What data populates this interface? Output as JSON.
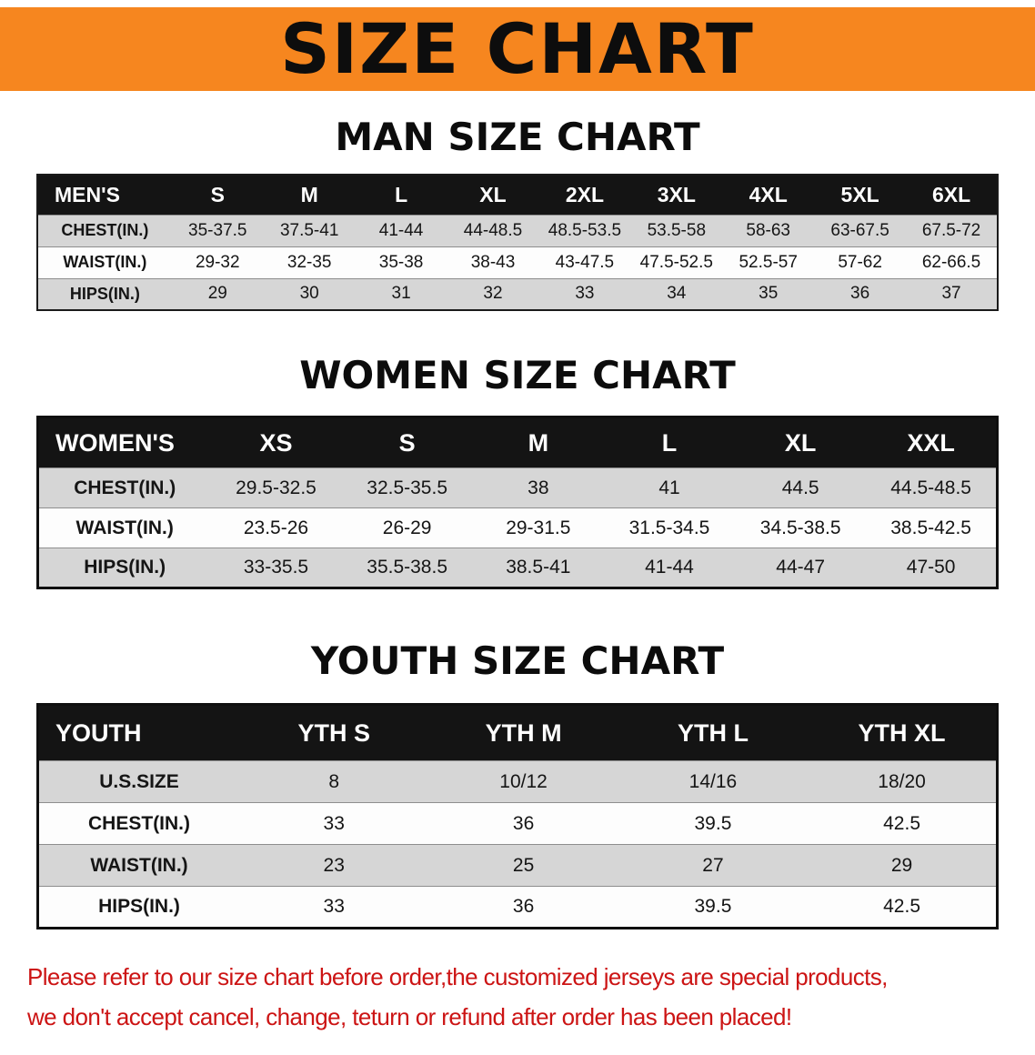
{
  "banner": {
    "title": "SIZE CHART"
  },
  "sections": [
    {
      "heading": "MAN SIZE CHART",
      "table": {
        "header": [
          "MEN'S",
          "S",
          "M",
          "L",
          "XL",
          "2XL",
          "3XL",
          "4XL",
          "5XL",
          "6XL"
        ],
        "rows": [
          [
            "CHEST(IN.)",
            "35-37.5",
            "37.5-41",
            "41-44",
            "44-48.5",
            "48.5-53.5",
            "53.5-58",
            "58-63",
            "63-67.5",
            "67.5-72"
          ],
          [
            "WAIST(IN.)",
            "29-32",
            "32-35",
            "35-38",
            "38-43",
            "43-47.5",
            "47.5-52.5",
            "52.5-57",
            "57-62",
            "62-66.5"
          ],
          [
            "HIPS(IN.)",
            "29",
            "30",
            "31",
            "32",
            "33",
            "34",
            "35",
            "36",
            "37"
          ]
        ]
      }
    },
    {
      "heading": "WOMEN SIZE CHART",
      "table": {
        "header": [
          "WOMEN'S",
          "XS",
          "S",
          "M",
          "L",
          "XL",
          "XXL"
        ],
        "rows": [
          [
            "CHEST(IN.)",
            "29.5-32.5",
            "32.5-35.5",
            "38",
            "41",
            "44.5",
            "44.5-48.5"
          ],
          [
            "WAIST(IN.)",
            "23.5-26",
            "26-29",
            "29-31.5",
            "31.5-34.5",
            "34.5-38.5",
            "38.5-42.5"
          ],
          [
            "HIPS(IN.)",
            "33-35.5",
            "35.5-38.5",
            "38.5-41",
            "41-44",
            "44-47",
            "47-50"
          ]
        ]
      }
    },
    {
      "heading": "YOUTH SIZE CHART",
      "table": {
        "header": [
          "YOUTH",
          "YTH S",
          "YTH M",
          "YTH L",
          "YTH XL"
        ],
        "rows": [
          [
            "U.S.SIZE",
            "8",
            "10/12",
            "14/16",
            "18/20"
          ],
          [
            "CHEST(IN.)",
            "33",
            "36",
            "39.5",
            "42.5"
          ],
          [
            "WAIST(IN.)",
            "23",
            "25",
            "27",
            "29"
          ],
          [
            "HIPS(IN.)",
            "33",
            "36",
            "39.5",
            "42.5"
          ]
        ]
      }
    }
  ],
  "notice": {
    "line1": "Please refer to our size chart before order,the customized jerseys are special products,",
    "line2": "we don't accept cancel, change, teturn or refund after order has been placed!"
  },
  "colors": {
    "banner_bg": "#F6861F",
    "table_header_bg": "#141414",
    "stripe_bg": "#D6D6D6",
    "notice_text": "#CC1414"
  }
}
